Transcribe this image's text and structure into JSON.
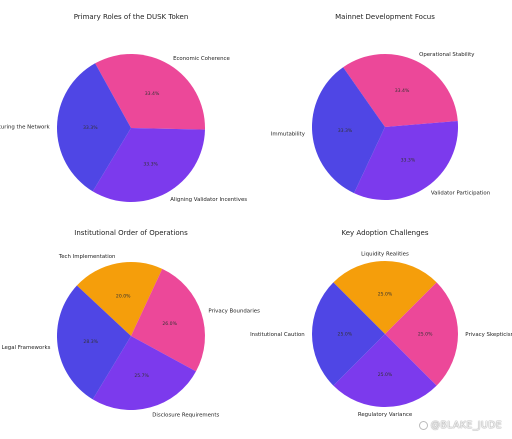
{
  "chart_data": [
    {
      "type": "pie",
      "title": "Primary Roles of the DUSK Token",
      "labels": [
        "Economic Coherence",
        "Aligning Validator Incentives",
        "Securing the Network"
      ],
      "values": [
        33.4,
        33.3,
        33.3
      ],
      "value_labels": [
        "33.4%",
        "33.3%",
        "33.3%"
      ],
      "colors": [
        "#ec4899",
        "#7c3aed",
        "#4f46e5"
      ]
    },
    {
      "type": "pie",
      "title": "Mainnet Development Focus",
      "labels": [
        "Operational Stability",
        "Validator Participation",
        "Immutability"
      ],
      "values": [
        33.4,
        33.3,
        33.3
      ],
      "value_labels": [
        "33.4%",
        "33.3%",
        "33.3%"
      ],
      "colors": [
        "#ec4899",
        "#7c3aed",
        "#4f46e5"
      ]
    },
    {
      "type": "pie",
      "title": "Institutional Order of Operations",
      "labels": [
        "Tech Implementation",
        "Privacy Boundaries",
        "Disclosure Requirements",
        "Legal Frameworks"
      ],
      "values": [
        20.0,
        26.0,
        25.7,
        28.3
      ],
      "value_labels": [
        "20.0%",
        "26.0%",
        "25.7%",
        "28.3%"
      ],
      "colors": [
        "#f59e0b",
        "#ec4899",
        "#7c3aed",
        "#4f46e5"
      ]
    },
    {
      "type": "pie",
      "title": "Key Adoption Challenges",
      "labels": [
        "Liquidity Realities",
        "Privacy Skepticism",
        "Regulatory Variance",
        "Institutional Caution"
      ],
      "values": [
        25.0,
        25.0,
        25.0,
        25.0
      ],
      "value_labels": [
        "25.0%",
        "25.0%",
        "25.0%",
        "25.0%"
      ],
      "colors": [
        "#f59e0b",
        "#ec4899",
        "#7c3aed",
        "#4f46e5"
      ]
    }
  ],
  "watermark": {
    "text": "@BLAKE_JUDE",
    "icon": "circle-logo-icon"
  }
}
